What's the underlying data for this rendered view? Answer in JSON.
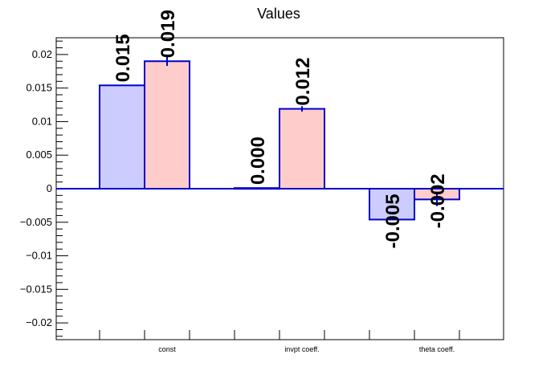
{
  "chart_data": {
    "type": "bar",
    "title": "Values",
    "categories": [
      "const",
      "invpt coeff.",
      "theta coeff."
    ],
    "ylim": [
      -0.0225,
      0.0225
    ],
    "yticks": [
      -0.02,
      -0.015,
      -0.01,
      -0.005,
      0,
      0.005,
      0.01,
      0.015,
      0.02
    ],
    "ytick_labels": [
      "−0.02",
      "−0.015",
      "−0.01",
      "−0.005",
      "0",
      "0.005",
      "0.01",
      "0.015",
      "0.02"
    ],
    "series": [
      {
        "values": [
          0.0154,
          0.0001,
          -0.0046
        ],
        "labels": [
          "0.015",
          "0.000",
          "-0.005"
        ],
        "color": "#ccccff",
        "error": [
          0,
          0,
          0
        ]
      },
      {
        "values": [
          0.019,
          0.0119,
          -0.0016
        ],
        "labels": [
          "0.019",
          "0.012",
          "-0.002"
        ],
        "color": "#ffcccc",
        "error": [
          0.0007,
          0.0004,
          0.001
        ]
      }
    ],
    "edge_color": "#0000cc",
    "grid": false,
    "legend": "none"
  }
}
